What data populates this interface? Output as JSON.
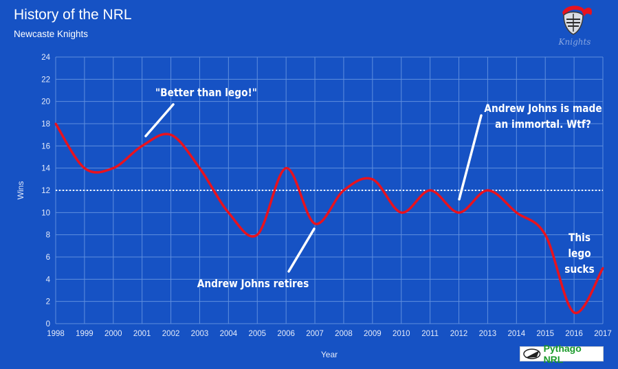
{
  "header": {
    "title": "History of the NRL",
    "subtitle": "Newcaste Knights"
  },
  "branding": {
    "pythago_label": "Pythago NRL",
    "logo_text": "Knights"
  },
  "colors": {
    "background": "#1652c4",
    "grid": "#5f8fde",
    "line": "#e8121e",
    "reference_line": "#ffffff",
    "brand_green": "#1a9a2a"
  },
  "chart_data": {
    "type": "line",
    "title": "History of the NRL",
    "subtitle": "Newcaste Knights",
    "xlabel": "Year",
    "ylabel": "Wins",
    "x": [
      1998,
      1999,
      2000,
      2001,
      2002,
      2003,
      2004,
      2005,
      2006,
      2007,
      2008,
      2009,
      2010,
      2011,
      2012,
      2013,
      2014,
      2015,
      2016,
      2017
    ],
    "series": [
      {
        "values": [
          18,
          14,
          14,
          16,
          17,
          14,
          10,
          8,
          14,
          9,
          12,
          13,
          10,
          12,
          10,
          12,
          10,
          8,
          1,
          5
        ]
      }
    ],
    "reference_line": {
      "y": 12,
      "style": "dotted"
    },
    "ylim": [
      0,
      24
    ],
    "yticks": [
      0,
      2,
      4,
      6,
      8,
      10,
      12,
      14,
      16,
      18,
      20,
      22,
      24
    ],
    "grid": true,
    "legend": "none",
    "annotations": [
      {
        "id": "lego",
        "lines": [
          "\"Better than lego!\""
        ],
        "x": 2001.2,
        "y": 16
      },
      {
        "id": "retires",
        "lines": [
          "Andrew Johns retires"
        ],
        "x": 2007,
        "y": 9
      },
      {
        "id": "immortal",
        "lines": [
          "Andrew Johns is made",
          "an immortal. Wtf?"
        ],
        "x": 2012,
        "y": 11
      },
      {
        "id": "sucks",
        "lines": [
          "This",
          "lego",
          "sucks"
        ],
        "x": 2016,
        "y": 1
      }
    ]
  }
}
